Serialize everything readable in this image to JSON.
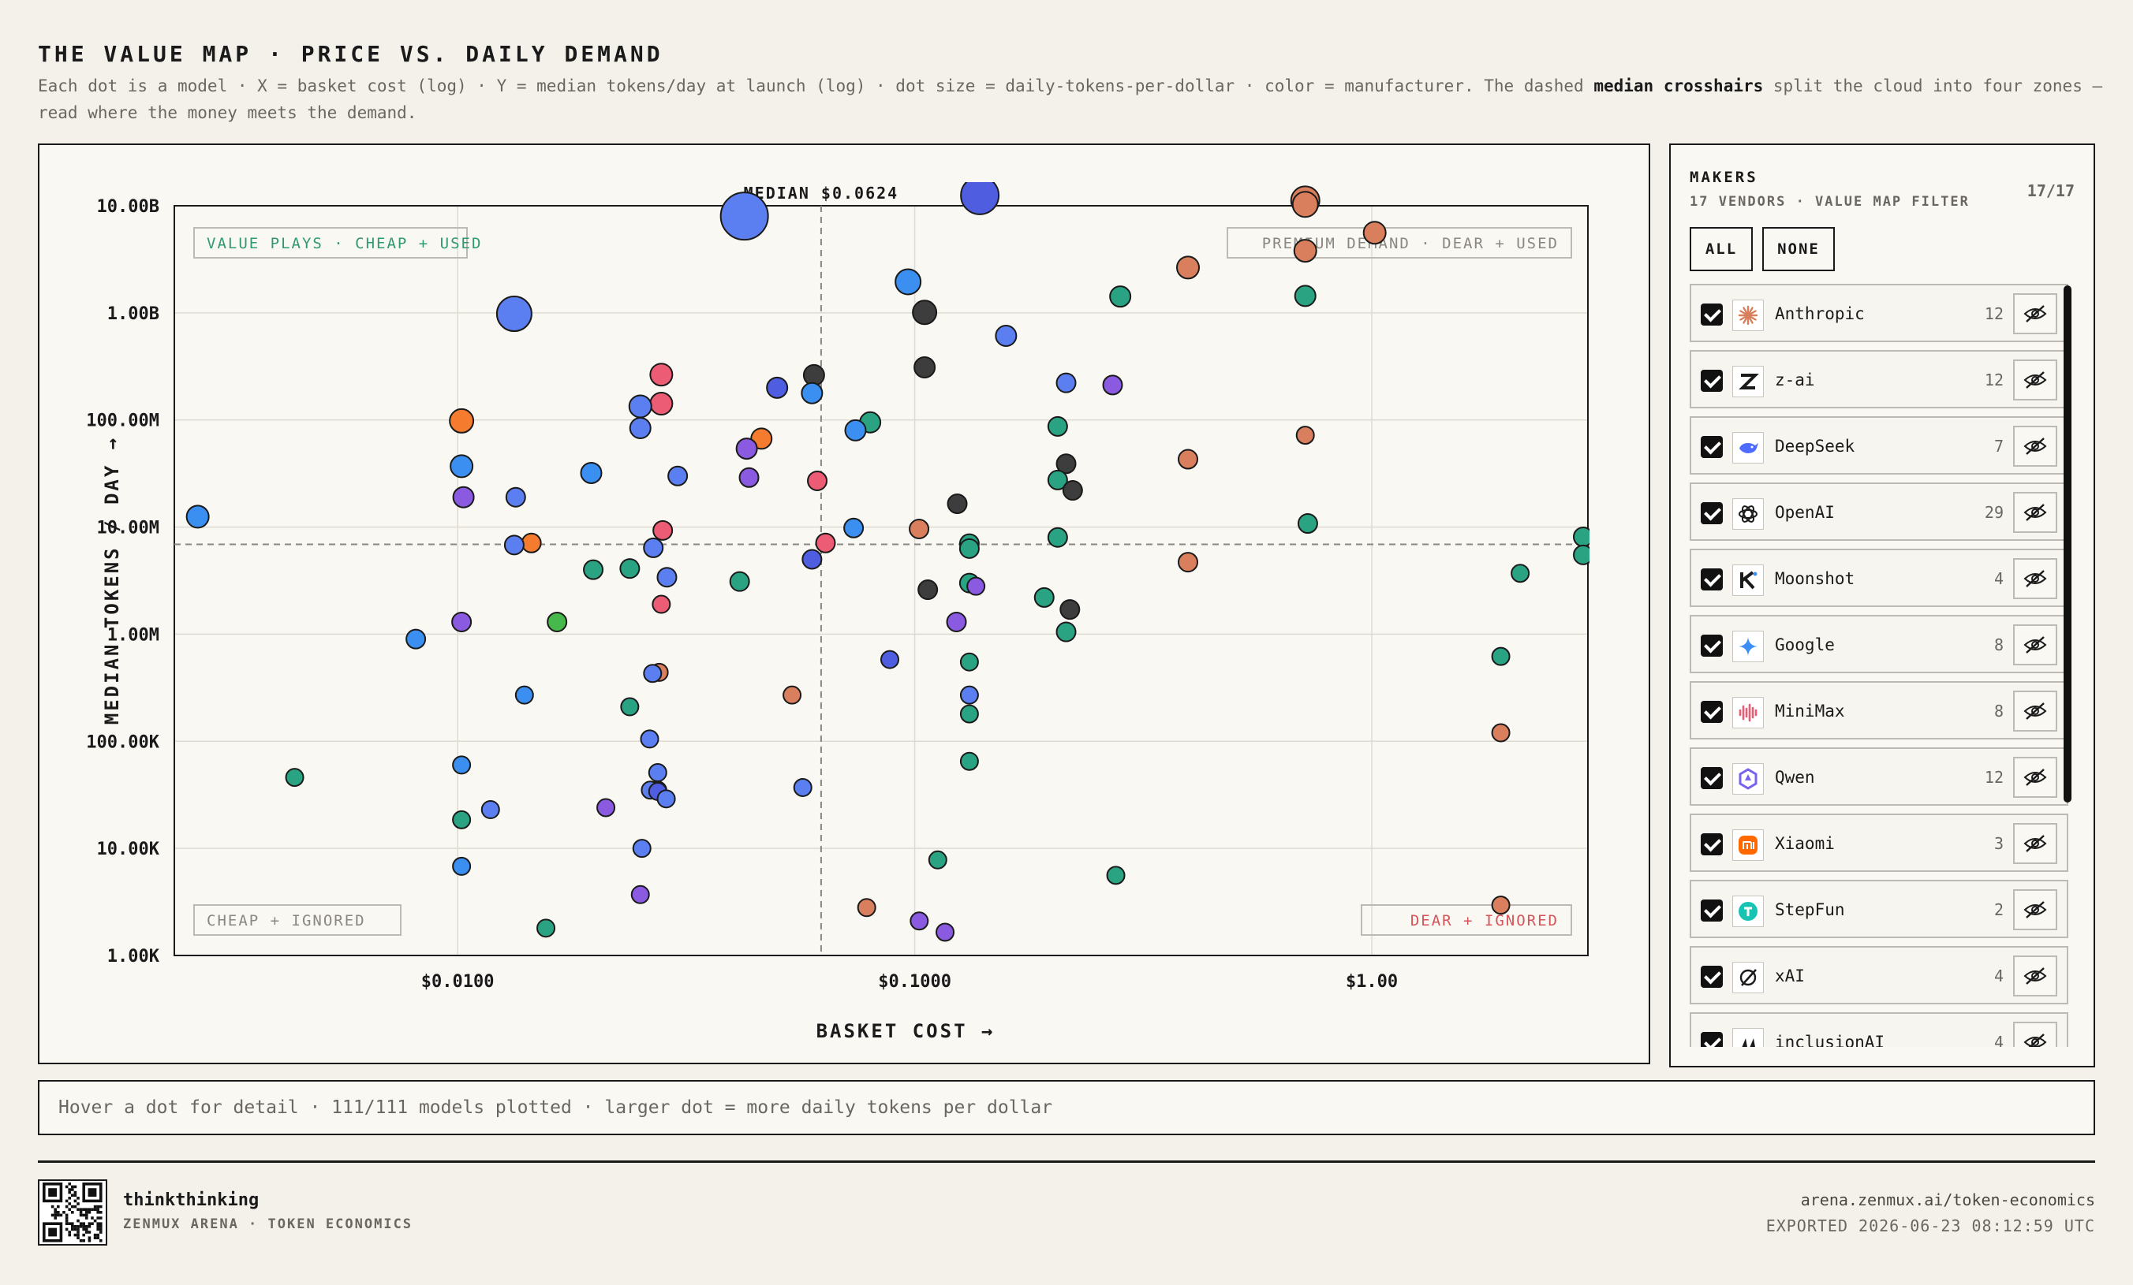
{
  "header": {
    "title": "THE VALUE MAP · PRICE VS. DAILY DEMAND",
    "subtitle_pre": "Each dot is a model · X = basket cost (log) · Y = median tokens/day at launch (log) · dot size = daily-tokens-per-dollar · color = manufacturer. The dashed ",
    "subtitle_bold": "median crosshairs",
    "subtitle_post": " split the cloud into four zones — read where the money meets the demand."
  },
  "chart_data": {
    "type": "scatter",
    "xlabel": "BASKET COST →",
    "ylabel": "MEDIAN TOKENS / DAY →",
    "x_scale": "log",
    "y_scale": "log",
    "xlim": [
      0.0024,
      2.97
    ],
    "ylim": [
      1000,
      10000000000
    ],
    "x_ticks": [
      {
        "value": 0.01,
        "label": "$0.0100"
      },
      {
        "value": 0.1,
        "label": "$0.1000"
      },
      {
        "value": 1,
        "label": "$1.00"
      }
    ],
    "y_ticks": [
      {
        "value": 10000000000,
        "label": "10.00B"
      },
      {
        "value": 1000000000,
        "label": "1.00B"
      },
      {
        "value": 100000000,
        "label": "100.00M"
      },
      {
        "value": 10000000,
        "label": "10.00M"
      },
      {
        "value": 1000000,
        "label": "1.00M"
      },
      {
        "value": 100000,
        "label": "100.00K"
      },
      {
        "value": 10000,
        "label": "10.00K"
      },
      {
        "value": 1000,
        "label": "1.00K"
      }
    ],
    "grid": true,
    "median_x": 0.0624,
    "median_y": 6900000,
    "median_label": "MEDIAN $0.0624",
    "quadrants": {
      "top_left": "VALUE PLAYS · CHEAP + USED",
      "top_right": "PREMIUM DEMAND · DEAR + USED",
      "bottom_left": "CHEAP + IGNORED",
      "bottom_right": "DEAR + IGNORED"
    },
    "maker_colors": {
      "Anthropic": "#d97f5e",
      "z-ai": "#3d3d3d",
      "DeepSeek": "#5b7ff0",
      "OpenAI": "#2aa382",
      "Moonshot": "#4f5de0",
      "Google": "#3b8ff0",
      "MiniMax": "#ec5c74",
      "Qwen": "#8a5ae0",
      "Xiaomi": "#f57c2e",
      "StepFun": "#46b84c"
    },
    "points": [
      {
        "maker": "DeepSeek",
        "x": 0.0424,
        "y": 8000000000,
        "r": 30
      },
      {
        "maker": "Moonshot",
        "x": 0.1388,
        "y": 12500000000,
        "r": 24
      },
      {
        "maker": "DeepSeek",
        "x": 0.0133,
        "y": 980000000,
        "r": 22
      },
      {
        "maker": "Anthropic",
        "x": 0.7152,
        "y": 11200000000,
        "r": 18
      },
      {
        "maker": "Anthropic",
        "x": 0.7152,
        "y": 10300000000,
        "r": 16
      },
      {
        "maker": "Anthropic",
        "x": 1.0145,
        "y": 5600000000,
        "r": 14
      },
      {
        "maker": "Anthropic",
        "x": 0.7152,
        "y": 3800000000,
        "r": 14
      },
      {
        "maker": "Anthropic",
        "x": 0.3961,
        "y": 2650000000,
        "r": 14
      },
      {
        "maker": "Google",
        "x": 0.0967,
        "y": 1950000000,
        "r": 16
      },
      {
        "maker": "z-ai",
        "x": 0.1051,
        "y": 1010000000,
        "r": 15
      },
      {
        "maker": "OpenAI",
        "x": 0.2816,
        "y": 1420000000,
        "r": 13
      },
      {
        "maker": "OpenAI",
        "x": 0.7152,
        "y": 1440000000,
        "r": 13
      },
      {
        "maker": "DeepSeek",
        "x": 0.1584,
        "y": 610000000,
        "r": 13
      },
      {
        "maker": "z-ai",
        "x": 0.1051,
        "y": 310000000,
        "r": 13
      },
      {
        "maker": "DeepSeek",
        "x": 0.2144,
        "y": 222000000,
        "r": 12
      },
      {
        "maker": "Qwen",
        "x": 0.271,
        "y": 212000000,
        "r": 12
      },
      {
        "maker": "MiniMax",
        "x": 0.0279,
        "y": 265000000,
        "r": 14
      },
      {
        "maker": "MiniMax",
        "x": 0.0279,
        "y": 142000000,
        "r": 14
      },
      {
        "maker": "z-ai",
        "x": 0.0602,
        "y": 262000000,
        "r": 13
      },
      {
        "maker": "Moonshot",
        "x": 0.05,
        "y": 200000000,
        "r": 13
      },
      {
        "maker": "Google",
        "x": 0.0596,
        "y": 178000000,
        "r": 13
      },
      {
        "maker": "DeepSeek",
        "x": 0.0251,
        "y": 134000000,
        "r": 14
      },
      {
        "maker": "DeepSeek",
        "x": 0.0251,
        "y": 84000000,
        "r": 13
      },
      {
        "maker": "Xiaomi",
        "x": 0.0102,
        "y": 98000000,
        "r": 15
      },
      {
        "maker": "Google",
        "x": 0.0102,
        "y": 37000000,
        "r": 14
      },
      {
        "maker": "OpenAI",
        "x": 0.0799,
        "y": 95000000,
        "r": 13
      },
      {
        "maker": "Google",
        "x": 0.0742,
        "y": 80000000,
        "r": 13
      },
      {
        "maker": "Xiaomi",
        "x": 0.0462,
        "y": 67000000,
        "r": 13
      },
      {
        "maker": "Qwen",
        "x": 0.0429,
        "y": 54000000,
        "r": 13
      },
      {
        "maker": "OpenAI",
        "x": 0.2055,
        "y": 87000000,
        "r": 12
      },
      {
        "maker": "Anthropic",
        "x": 0.7152,
        "y": 72000000,
        "r": 11
      },
      {
        "maker": "Anthropic",
        "x": 0.3961,
        "y": 43000000,
        "r": 12
      },
      {
        "maker": "z-ai",
        "x": 0.2144,
        "y": 39000000,
        "r": 12
      },
      {
        "maker": "Google",
        "x": 0.0196,
        "y": 32000000,
        "r": 13
      },
      {
        "maker": "DeepSeek",
        "x": 0.0303,
        "y": 30000000,
        "r": 12
      },
      {
        "maker": "Qwen",
        "x": 0.0434,
        "y": 29000000,
        "r": 12
      },
      {
        "maker": "MiniMax",
        "x": 0.0612,
        "y": 27000000,
        "r": 12
      },
      {
        "maker": "OpenAI",
        "x": 0.2055,
        "y": 27500000,
        "r": 12
      },
      {
        "maker": "z-ai",
        "x": 0.2216,
        "y": 22000000,
        "r": 12
      },
      {
        "maker": "Qwen",
        "x": 0.0103,
        "y": 19000000,
        "r": 13
      },
      {
        "maker": "DeepSeek",
        "x": 0.0134,
        "y": 19000000,
        "r": 12
      },
      {
        "maker": "Google",
        "x": 0.0027,
        "y": 12500000,
        "r": 14
      },
      {
        "maker": "z-ai",
        "x": 0.1239,
        "y": 16500000,
        "r": 12
      },
      {
        "maker": "OpenAI",
        "x": 0.7244,
        "y": 10800000,
        "r": 12
      },
      {
        "maker": "Google",
        "x": 0.0735,
        "y": 9800000,
        "r": 12
      },
      {
        "maker": "Anthropic",
        "x": 0.1022,
        "y": 9600000,
        "r": 12
      },
      {
        "maker": "MiniMax",
        "x": 0.0281,
        "y": 9300000,
        "r": 12
      },
      {
        "maker": "OpenAI",
        "x": 0.2055,
        "y": 8000000,
        "r": 12
      },
      {
        "maker": "OpenAI",
        "x": 0.1317,
        "y": 7000000,
        "r": 12
      },
      {
        "maker": "OpenAI",
        "x": 0.1317,
        "y": 6300000,
        "r": 12
      },
      {
        "maker": "Xiaomi",
        "x": 0.0145,
        "y": 7100000,
        "r": 12
      },
      {
        "maker": "DeepSeek",
        "x": 0.0133,
        "y": 6800000,
        "r": 12
      },
      {
        "maker": "MiniMax",
        "x": 0.0638,
        "y": 7100000,
        "r": 12
      },
      {
        "maker": "DeepSeek",
        "x": 0.0268,
        "y": 6400000,
        "r": 12
      },
      {
        "maker": "Moonshot",
        "x": 0.0596,
        "y": 5000000,
        "r": 12
      },
      {
        "maker": "Anthropic",
        "x": 0.3961,
        "y": 4700000,
        "r": 12
      },
      {
        "maker": "OpenAI",
        "x": 2.9,
        "y": 8100000,
        "r": 12
      },
      {
        "maker": "OpenAI",
        "x": 2.9,
        "y": 5500000,
        "r": 12
      },
      {
        "maker": "OpenAI",
        "x": 2.1113,
        "y": 3700000,
        "r": 11
      },
      {
        "maker": "OpenAI",
        "x": 0.0198,
        "y": 4000000,
        "r": 12
      },
      {
        "maker": "OpenAI",
        "x": 0.0238,
        "y": 4100000,
        "r": 12
      },
      {
        "maker": "DeepSeek",
        "x": 0.0287,
        "y": 3400000,
        "r": 12
      },
      {
        "maker": "OpenAI",
        "x": 0.0414,
        "y": 3100000,
        "r": 12
      },
      {
        "maker": "OpenAI",
        "x": 0.1317,
        "y": 3000000,
        "r": 12
      },
      {
        "maker": "Qwen",
        "x": 0.1361,
        "y": 2800000,
        "r": 11
      },
      {
        "maker": "z-ai",
        "x": 0.1068,
        "y": 2600000,
        "r": 12
      },
      {
        "maker": "OpenAI",
        "x": 0.192,
        "y": 2200000,
        "r": 12
      },
      {
        "maker": "MiniMax",
        "x": 0.0279,
        "y": 1900000,
        "r": 11
      },
      {
        "maker": "z-ai",
        "x": 0.2185,
        "y": 1700000,
        "r": 12
      },
      {
        "maker": "Qwen",
        "x": 0.0102,
        "y": 1300000,
        "r": 12
      },
      {
        "maker": "StepFun",
        "x": 0.0165,
        "y": 1300000,
        "r": 12
      },
      {
        "maker": "Qwen",
        "x": 0.1234,
        "y": 1300000,
        "r": 12
      },
      {
        "maker": "OpenAI",
        "x": 0.2144,
        "y": 1050000,
        "r": 12
      },
      {
        "maker": "Google",
        "x": 0.0081,
        "y": 900000,
        "r": 12
      },
      {
        "maker": "OpenAI",
        "x": 1.915,
        "y": 620000,
        "r": 11
      },
      {
        "maker": "Moonshot",
        "x": 0.0882,
        "y": 580000,
        "r": 11
      },
      {
        "maker": "OpenAI",
        "x": 0.1317,
        "y": 550000,
        "r": 11
      },
      {
        "maker": "Anthropic",
        "x": 0.0276,
        "y": 440000,
        "r": 11
      },
      {
        "maker": "DeepSeek",
        "x": 0.0267,
        "y": 430000,
        "r": 11
      },
      {
        "maker": "Anthropic",
        "x": 0.0539,
        "y": 270000,
        "r": 11
      },
      {
        "maker": "Google",
        "x": 0.014,
        "y": 270000,
        "r": 11
      },
      {
        "maker": "DeepSeek",
        "x": 0.1317,
        "y": 270000,
        "r": 11
      },
      {
        "maker": "OpenAI",
        "x": 0.0238,
        "y": 210000,
        "r": 11
      },
      {
        "maker": "OpenAI",
        "x": 0.1317,
        "y": 180000,
        "r": 11
      },
      {
        "maker": "Anthropic",
        "x": 1.915,
        "y": 120000,
        "r": 11
      },
      {
        "maker": "DeepSeek",
        "x": 0.0263,
        "y": 105000,
        "r": 11
      },
      {
        "maker": "OpenAI",
        "x": 0.1317,
        "y": 65000,
        "r": 11
      },
      {
        "maker": "Google",
        "x": 0.0102,
        "y": 60000,
        "r": 11
      },
      {
        "maker": "OpenAI",
        "x": 0.0044,
        "y": 46000,
        "r": 11
      },
      {
        "maker": "DeepSeek",
        "x": 0.0274,
        "y": 51000,
        "r": 11
      },
      {
        "maker": "DeepSeek",
        "x": 0.0569,
        "y": 37000,
        "r": 11
      },
      {
        "maker": "Anthropic",
        "x": 0.0274,
        "y": 35000,
        "r": 11
      },
      {
        "maker": "DeepSeek",
        "x": 0.0264,
        "y": 35000,
        "r": 11
      },
      {
        "maker": "Moonshot",
        "x": 0.0274,
        "y": 34000,
        "r": 11
      },
      {
        "maker": "DeepSeek",
        "x": 0.0286,
        "y": 29000,
        "r": 11
      },
      {
        "maker": "Qwen",
        "x": 0.0211,
        "y": 24000,
        "r": 11
      },
      {
        "maker": "DeepSeek",
        "x": 0.0118,
        "y": 23000,
        "r": 11
      },
      {
        "maker": "OpenAI",
        "x": 0.0102,
        "y": 18500,
        "r": 11
      },
      {
        "maker": "DeepSeek",
        "x": 0.0253,
        "y": 10000,
        "r": 11
      },
      {
        "maker": "OpenAI",
        "x": 0.1123,
        "y": 7800,
        "r": 11
      },
      {
        "maker": "Google",
        "x": 0.0102,
        "y": 6800,
        "r": 11
      },
      {
        "maker": "OpenAI",
        "x": 0.2754,
        "y": 5600,
        "r": 11
      },
      {
        "maker": "Qwen",
        "x": 0.0251,
        "y": 3700,
        "r": 11
      },
      {
        "maker": "Anthropic",
        "x": 0.0785,
        "y": 2800,
        "r": 11
      },
      {
        "maker": "Anthropic",
        "x": 1.915,
        "y": 2950,
        "r": 11
      },
      {
        "maker": "Qwen",
        "x": 0.1023,
        "y": 2100,
        "r": 11
      },
      {
        "maker": "Qwen",
        "x": 0.1165,
        "y": 1650,
        "r": 11
      },
      {
        "maker": "OpenAI",
        "x": 0.0156,
        "y": 1800,
        "r": 11
      }
    ]
  },
  "sidebar": {
    "title": "MAKERS",
    "subtitle": "17 VENDORS · VALUE MAP FILTER",
    "count": "17/17",
    "all_label": "ALL",
    "none_label": "NONE",
    "vendors": [
      {
        "name": "Anthropic",
        "count": "12",
        "icon": "anthropic-logo-icon",
        "color": "#d97f5e"
      },
      {
        "name": "z-ai",
        "count": "12",
        "icon": "z-ai-logo-icon",
        "color": "#1a1a1a"
      },
      {
        "name": "DeepSeek",
        "count": "7",
        "icon": "deepseek-whale-icon",
        "color": "#4d6bfe"
      },
      {
        "name": "OpenAI",
        "count": "29",
        "icon": "openai-knot-icon",
        "color": "#1a1a1a"
      },
      {
        "name": "Moonshot",
        "count": "4",
        "icon": "moonshot-k-icon",
        "color": "#1a1a1a"
      },
      {
        "name": "Google",
        "count": "8",
        "icon": "google-gemini-icon",
        "color": "#3b8ff0"
      },
      {
        "name": "MiniMax",
        "count": "8",
        "icon": "minimax-wave-icon",
        "color": "#ec5c74"
      },
      {
        "name": "Qwen",
        "count": "12",
        "icon": "qwen-star-icon",
        "color": "#7a62f0"
      },
      {
        "name": "Xiaomi",
        "count": "3",
        "icon": "xiaomi-mi-icon",
        "color": "#ff6900"
      },
      {
        "name": "StepFun",
        "count": "2",
        "icon": "stepfun-logo-icon",
        "color": "#17c3b2"
      },
      {
        "name": "xAI",
        "count": "4",
        "icon": "xai-logo-icon",
        "color": "#1a1a1a"
      },
      {
        "name": "inclusionAI",
        "count": "4",
        "icon": "inclusionai-logo-icon",
        "color": "#1a1a1a"
      }
    ]
  },
  "status": {
    "text": "Hover a dot for detail · 111/111 models plotted · larger dot = more daily tokens per dollar"
  },
  "footer": {
    "brand": "thinkthinking",
    "brand_sub": "ZENMUX ARENA · TOKEN ECONOMICS",
    "url": "arena.zenmux.ai/token-economics",
    "exported": "EXPORTED 2026-06-23 08:12:59 UTC"
  }
}
